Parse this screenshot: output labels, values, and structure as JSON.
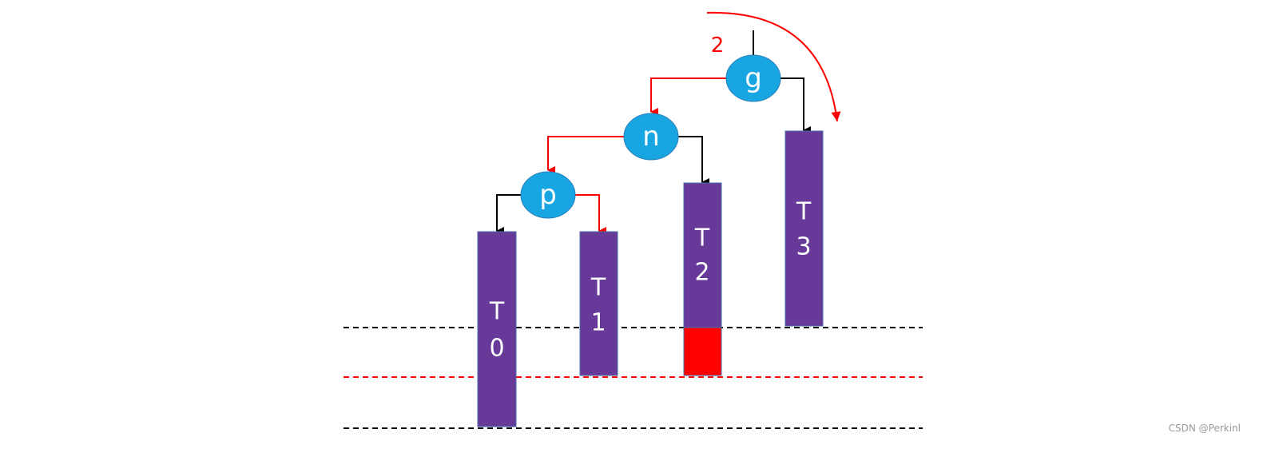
{
  "nodes": [
    {
      "label": "g"
    },
    {
      "label": "n"
    },
    {
      "label": "p"
    }
  ],
  "subtrees": [
    {
      "letter": "T",
      "number": "0"
    },
    {
      "letter": "T",
      "number": "1"
    },
    {
      "letter": "T",
      "number": "2"
    },
    {
      "letter": "T",
      "number": "3"
    }
  ],
  "annotation": "2",
  "watermark": "CSDN @Perkinl"
}
